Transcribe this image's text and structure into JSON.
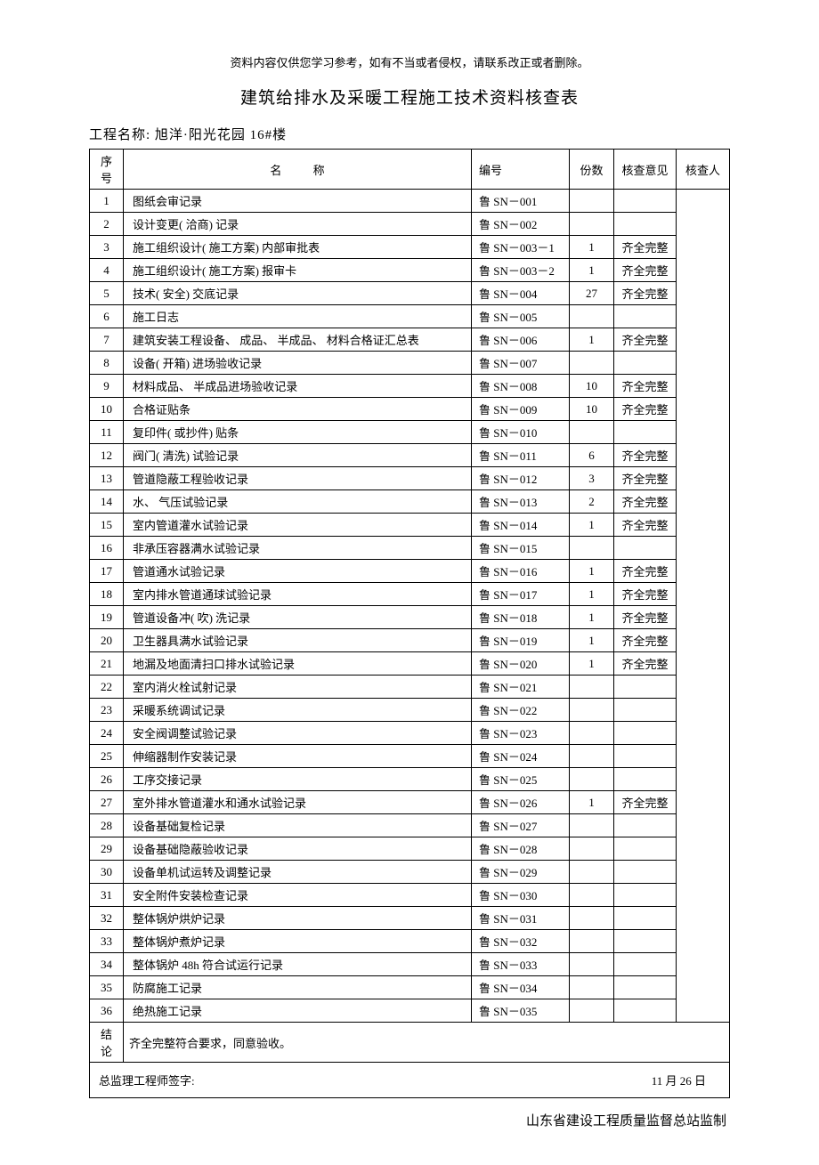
{
  "header_note": "资料内容仅供您学习参考，如有不当或者侵权，请联系改正或者删除。",
  "title": "建筑给排水及采暖工程施工技术资料核查表",
  "project_label": "工程名称:",
  "project_name": "旭洋·阳光花园 16#楼",
  "columns": {
    "seq": "序号",
    "name": "名 称",
    "code": "编号",
    "count": "份数",
    "opinion": "核查意见",
    "inspector": "核查人"
  },
  "rows": [
    {
      "seq": "1",
      "name": "图纸会审记录",
      "code": "鲁 SN－001",
      "count": "",
      "opinion": ""
    },
    {
      "seq": "2",
      "name": "设计变更( 洽商) 记录",
      "code": "鲁 SN－002",
      "count": "",
      "opinion": ""
    },
    {
      "seq": "3",
      "name": "施工组织设计( 施工方案) 内部审批表",
      "code": "鲁 SN－003－1",
      "count": "1",
      "opinion": "齐全完整"
    },
    {
      "seq": "4",
      "name": "施工组织设计( 施工方案) 报审卡",
      "code": "鲁 SN－003－2",
      "count": "1",
      "opinion": "齐全完整"
    },
    {
      "seq": "5",
      "name": "技术( 安全) 交底记录",
      "code": "鲁 SN－004",
      "count": "27",
      "opinion": "齐全完整"
    },
    {
      "seq": "6",
      "name": "施工日志",
      "code": "鲁 SN－005",
      "count": "",
      "opinion": ""
    },
    {
      "seq": "7",
      "name": "建筑安装工程设备、 成品、 半成品、 材料合格证汇总表",
      "code": "鲁 SN－006",
      "count": "1",
      "opinion": "齐全完整"
    },
    {
      "seq": "8",
      "name": "设备( 开箱) 进场验收记录",
      "code": "鲁 SN－007",
      "count": "",
      "opinion": ""
    },
    {
      "seq": "9",
      "name": "材料成品、 半成品进场验收记录",
      "code": "鲁 SN－008",
      "count": "10",
      "opinion": "齐全完整"
    },
    {
      "seq": "10",
      "name": "合格证贴条",
      "code": "鲁 SN－009",
      "count": "10",
      "opinion": "齐全完整"
    },
    {
      "seq": "11",
      "name": "复印件( 或抄件) 贴条",
      "code": "鲁 SN－010",
      "count": "",
      "opinion": ""
    },
    {
      "seq": "12",
      "name": "阀门( 清洗) 试验记录",
      "code": "鲁 SN－011",
      "count": "6",
      "opinion": "齐全完整"
    },
    {
      "seq": "13",
      "name": "管道隐蔽工程验收记录",
      "code": "鲁 SN－012",
      "count": "3",
      "opinion": "齐全完整"
    },
    {
      "seq": "14",
      "name": "水、 气压试验记录",
      "code": "鲁 SN－013",
      "count": "2",
      "opinion": "齐全完整"
    },
    {
      "seq": "15",
      "name": "室内管道灌水试验记录",
      "code": "鲁 SN－014",
      "count": "1",
      "opinion": "齐全完整"
    },
    {
      "seq": "16",
      "name": "非承压容器满水试验记录",
      "code": "鲁 SN－015",
      "count": "",
      "opinion": ""
    },
    {
      "seq": "17",
      "name": "管道通水试验记录",
      "code": "鲁 SN－016",
      "count": "1",
      "opinion": "齐全完整"
    },
    {
      "seq": "18",
      "name": "室内排水管道通球试验记录",
      "code": "鲁 SN－017",
      "count": "1",
      "opinion": "齐全完整"
    },
    {
      "seq": "19",
      "name": "管道设备冲( 吹) 洗记录",
      "code": "鲁 SN－018",
      "count": "1",
      "opinion": "齐全完整"
    },
    {
      "seq": "20",
      "name": "卫生器具满水试验记录",
      "code": "鲁 SN－019",
      "count": "1",
      "opinion": "齐全完整"
    },
    {
      "seq": "21",
      "name": "地漏及地面清扫口排水试验记录",
      "code": "鲁 SN－020",
      "count": "1",
      "opinion": "齐全完整"
    },
    {
      "seq": "22",
      "name": "室内消火栓试射记录",
      "code": "鲁 SN－021",
      "count": "",
      "opinion": ""
    },
    {
      "seq": "23",
      "name": "采暖系统调试记录",
      "code": "鲁 SN－022",
      "count": "",
      "opinion": ""
    },
    {
      "seq": "24",
      "name": "安全阀调整试验记录",
      "code": "鲁 SN－023",
      "count": "",
      "opinion": ""
    },
    {
      "seq": "25",
      "name": "伸缩器制作安装记录",
      "code": "鲁 SN－024",
      "count": "",
      "opinion": ""
    },
    {
      "seq": "26",
      "name": "工序交接记录",
      "code": "鲁 SN－025",
      "count": "",
      "opinion": ""
    },
    {
      "seq": "27",
      "name": "室外排水管道灌水和通水试验记录",
      "code": "鲁 SN－026",
      "count": "1",
      "opinion": "齐全完整"
    },
    {
      "seq": "28",
      "name": "设备基础复检记录",
      "code": "鲁 SN－027",
      "count": "",
      "opinion": ""
    },
    {
      "seq": "29",
      "name": "设备基础隐蔽验收记录",
      "code": "鲁 SN－028",
      "count": "",
      "opinion": ""
    },
    {
      "seq": "30",
      "name": "设备单机试运转及调整记录",
      "code": "鲁 SN－029",
      "count": "",
      "opinion": ""
    },
    {
      "seq": "31",
      "name": "安全附件安装检查记录",
      "code": "鲁 SN－030",
      "count": "",
      "opinion": ""
    },
    {
      "seq": "32",
      "name": "整体锅炉烘炉记录",
      "code": "鲁 SN－031",
      "count": "",
      "opinion": ""
    },
    {
      "seq": "33",
      "name": "整体锅炉煮炉记录",
      "code": "鲁 SN－032",
      "count": "",
      "opinion": ""
    },
    {
      "seq": "34",
      "name": "整体锅炉 48h 符合试运行记录",
      "code": "鲁 SN－033",
      "count": "",
      "opinion": ""
    },
    {
      "seq": "35",
      "name": "防腐施工记录",
      "code": "鲁 SN－034",
      "count": "",
      "opinion": ""
    },
    {
      "seq": "36",
      "name": "绝热施工记录",
      "code": "鲁 SN－035",
      "count": "",
      "opinion": ""
    }
  ],
  "conclusion_label": "结论",
  "conclusion_text": "齐全完整符合要求，同意验收。",
  "sign_label": "总监理工程师签字:",
  "sign_date": "11 月 26 日",
  "footer": "山东省建设工程质量监督总站监制"
}
